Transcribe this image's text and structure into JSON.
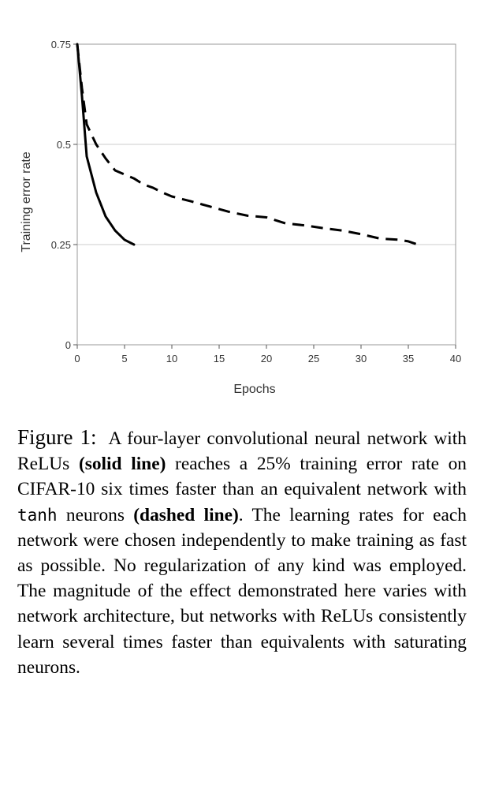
{
  "chart_data": {
    "type": "line",
    "xlabel": "Epochs",
    "ylabel": "Training error rate",
    "xlim": [
      0,
      40
    ],
    "ylim": [
      0,
      0.75
    ],
    "x_ticks": [
      "0",
      "5",
      "10",
      "15",
      "20",
      "25",
      "30",
      "35",
      "40"
    ],
    "y_ticks": [
      "0",
      "0.25",
      "0.5",
      "0.75"
    ],
    "grid": "horizontal",
    "colors": {
      "lines": "#000000",
      "grid": "#cccccc",
      "frame": "#999999"
    },
    "series": [
      {
        "style": "solid",
        "x": [
          0,
          0.5,
          1,
          2,
          3,
          4,
          5,
          6
        ],
        "y": [
          0.75,
          0.62,
          0.47,
          0.38,
          0.32,
          0.285,
          0.262,
          0.25
        ]
      },
      {
        "style": "dashed",
        "x": [
          0,
          0.5,
          1,
          2,
          3,
          4,
          5,
          6,
          7,
          8,
          9,
          10,
          12,
          14,
          16,
          18,
          20,
          22,
          24,
          26,
          28,
          30,
          32,
          34,
          35,
          36
        ],
        "y": [
          0.75,
          0.64,
          0.55,
          0.5,
          0.465,
          0.435,
          0.425,
          0.415,
          0.4,
          0.392,
          0.38,
          0.37,
          0.358,
          0.345,
          0.332,
          0.322,
          0.318,
          0.303,
          0.298,
          0.291,
          0.285,
          0.276,
          0.265,
          0.262,
          0.258,
          0.25
        ]
      }
    ]
  },
  "caption": {
    "label": "Figure 1:",
    "part1": "A four-layer convolutional neural network with ReLUs ",
    "solid_line": "(solid line)",
    "part2": " reaches a 25% training error rate on CIFAR-10 six times faster than an equivalent network with ",
    "tanh": "tanh",
    "part3": " neurons ",
    "dashed_line": "(dashed line)",
    "part4": ". The learning rates for each network were chosen independently to make training as fast as possible. No regularization of any kind was employed. The magnitude of the effect demonstrated here varies with network architecture, but networks with ReLUs consistently learn several times faster than equivalents with saturating neurons."
  }
}
